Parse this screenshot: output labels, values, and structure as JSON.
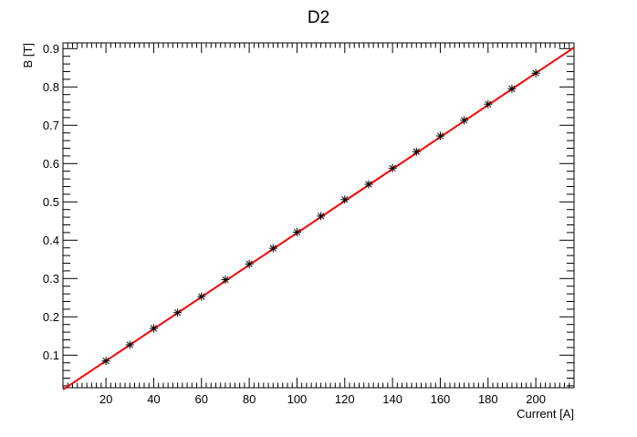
{
  "chart_data": {
    "type": "scatter",
    "title": "D2",
    "xlabel": "Current [A]",
    "ylabel": "B [T]",
    "xlim": [
      2,
      216
    ],
    "ylim": [
      0.015,
      0.915
    ],
    "x_ticks": [
      20,
      40,
      60,
      80,
      100,
      120,
      140,
      160,
      180,
      200
    ],
    "y_ticks": [
      0.1,
      0.2,
      0.3,
      0.4,
      0.5,
      0.6,
      0.7,
      0.8,
      0.9
    ],
    "x_tick_labels": [
      "20",
      "40",
      "60",
      "80",
      "100",
      "120",
      "140",
      "160",
      "180",
      "200"
    ],
    "y_tick_labels": [
      "0.1",
      "0.2",
      "0.3",
      "0.4",
      "0.5",
      "0.6",
      "0.7",
      "0.8",
      "0.9"
    ],
    "grid": false,
    "legend": "none",
    "series": [
      {
        "marker": "asterisk",
        "color": "#000000",
        "x": [
          20,
          30,
          40,
          50,
          60,
          70,
          80,
          90,
          100,
          110,
          120,
          130,
          140,
          150,
          160,
          170,
          180,
          190,
          200
        ],
        "y": [
          0.085,
          0.127,
          0.17,
          0.211,
          0.253,
          0.297,
          0.338,
          0.379,
          0.421,
          0.463,
          0.506,
          0.546,
          0.588,
          0.631,
          0.672,
          0.713,
          0.755,
          0.795,
          0.836
        ]
      }
    ],
    "fit_line": {
      "color": "#ff0000",
      "x": [
        2,
        216
      ],
      "y": [
        0.01,
        0.903
      ]
    }
  }
}
